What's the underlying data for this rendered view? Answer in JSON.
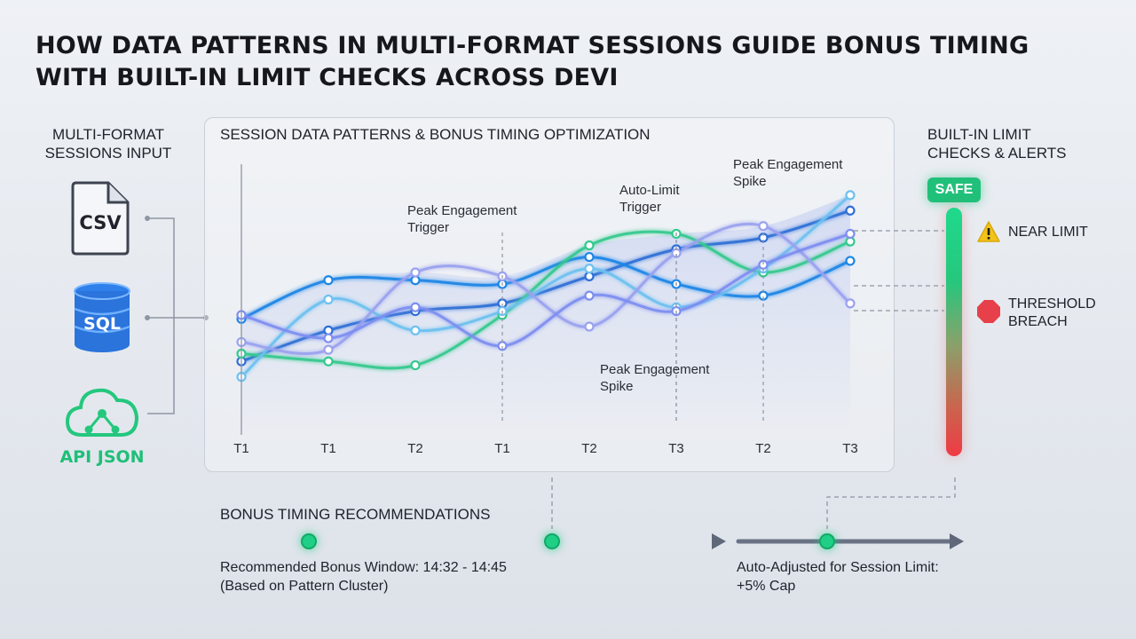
{
  "title": "HOW DATA PATTERNS IN MULTI-FORMAT SESSIONS GUIDE BONUS TIMING WITH BUILT-IN LIMIT CHECKS ACROSS DEVI",
  "inputs": {
    "heading": "MULTI-FORMAT SESSIONS INPUT",
    "items": [
      {
        "label": "CSV",
        "icon": "csv-file-icon"
      },
      {
        "label": "SQL",
        "icon": "database-icon"
      },
      {
        "label": "API JSON",
        "icon": "cloud-api-icon"
      }
    ]
  },
  "chart_panel": {
    "heading": "SESSION DATA PATTERNS & BONUS TIMING OPTIMIZATION"
  },
  "chart_data": {
    "type": "line",
    "categories": [
      "T1",
      "T1",
      "T2",
      "T1",
      "T2",
      "T3",
      "T2",
      "T3"
    ],
    "series": [
      {
        "color": "#2f6fd6",
        "values": [
          59,
          67,
          72,
          74,
          81,
          88,
          91,
          98
        ]
      },
      {
        "color": "#1d86e6",
        "values": [
          70,
          80,
          80,
          79,
          86,
          79,
          76,
          85
        ]
      },
      {
        "color": "#34c98e",
        "values": [
          61,
          59,
          58,
          71,
          89,
          92,
          82,
          90
        ]
      },
      {
        "color": "#6ec1f0",
        "values": [
          55,
          75,
          67,
          72,
          83,
          73,
          83,
          102
        ]
      },
      {
        "color": "#9aa2ef",
        "values": [
          64,
          62,
          82,
          81,
          68,
          87,
          94,
          74
        ]
      },
      {
        "color": "#7d8ef0",
        "values": [
          71,
          65,
          73,
          63,
          76,
          72,
          84,
          92
        ]
      }
    ],
    "annotations": [
      {
        "text": "Peak Engagement Trigger",
        "category_index": 3
      },
      {
        "text": "Auto-Limit Trigger",
        "category_index": 5
      },
      {
        "text": "Peak Engagement Spike",
        "category_index": 5
      },
      {
        "text": "Peak Engagement Spike",
        "category_index": 6
      }
    ],
    "ylim": [
      40,
      110
    ]
  },
  "limits": {
    "heading": "BUILT-IN LIMIT CHECKS & ALERTS",
    "badge": "SAFE",
    "alerts": [
      {
        "label": "NEAR LIMIT",
        "icon": "warning-icon",
        "color": "#f2c318"
      },
      {
        "label": "THRESHOLD BREACH",
        "icon": "stop-icon",
        "color": "#e8404a"
      }
    ]
  },
  "recommendations": {
    "heading": "BONUS TIMING RECOMMENDATIONS",
    "window_text": "Recommended Bonus Window: 14:32 - 14:45",
    "window_note": "(Based on Pattern Cluster)",
    "adjust_text": "Auto-Adjusted for Session Limit:",
    "adjust_note": "+5% Cap"
  },
  "colors": {
    "accent_green": "#1fcf86",
    "safe": "#21c07a",
    "breach": "#e8404a",
    "warning": "#f2c318"
  }
}
